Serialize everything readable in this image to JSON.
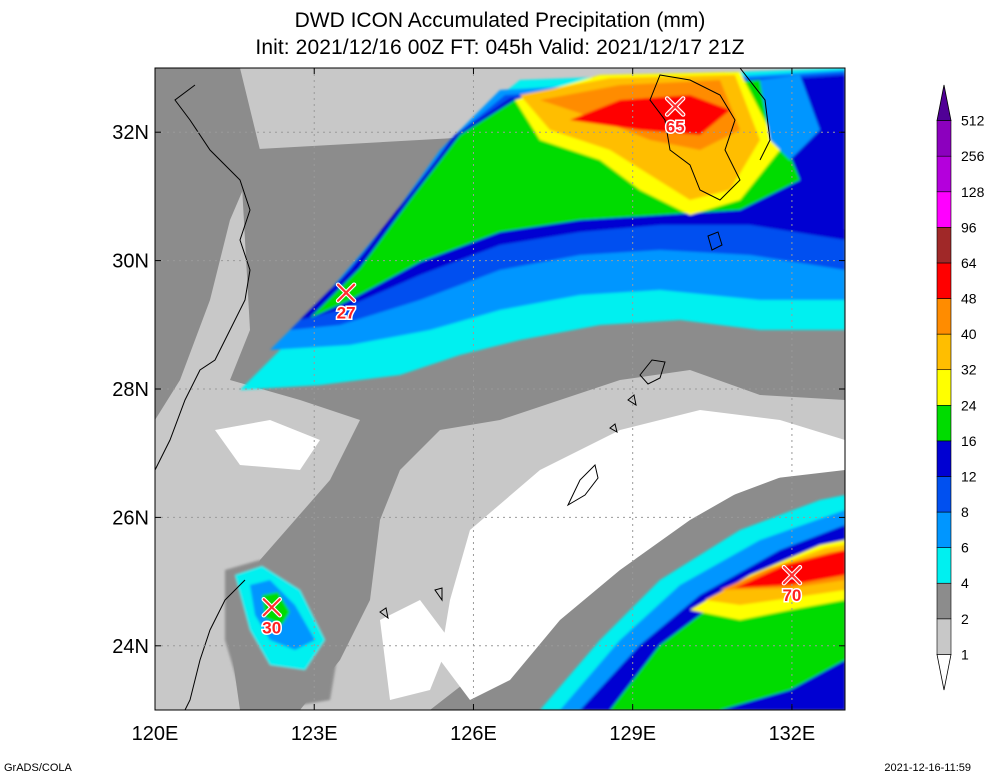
{
  "title": "DWD ICON Accumulated Precipitation (mm)",
  "subtitle": "Init: 2021/12/16 00Z  FT: 045h  Valid: 2021/12/17 21Z",
  "footer_left": "GrADS/COLA",
  "footer_right": "2021-12-16-11:59",
  "map": {
    "lon_range": [
      120,
      133
    ],
    "lat_range": [
      23,
      33
    ],
    "lon_ticks": [
      {
        "value": 120,
        "label": "120E"
      },
      {
        "value": 123,
        "label": "123E"
      },
      {
        "value": 126,
        "label": "126E"
      },
      {
        "value": 129,
        "label": "129E"
      },
      {
        "value": 132,
        "label": "132E"
      }
    ],
    "lat_ticks": [
      {
        "value": 24,
        "label": "24N"
      },
      {
        "value": 26,
        "label": "26N"
      },
      {
        "value": 28,
        "label": "28N"
      },
      {
        "value": 30,
        "label": "30N"
      },
      {
        "value": 32,
        "label": "32N"
      }
    ],
    "grid": true
  },
  "maxima": [
    {
      "lon": 123.6,
      "lat": 29.5,
      "label": "27"
    },
    {
      "lon": 122.2,
      "lat": 24.6,
      "label": "30"
    },
    {
      "lon": 129.8,
      "lat": 32.4,
      "label": "65"
    },
    {
      "lon": 132.0,
      "lat": 25.1,
      "label": "70"
    }
  ],
  "legend": {
    "levels": [
      "1",
      "2",
      "4",
      "6",
      "8",
      "12",
      "16",
      "24",
      "32",
      "40",
      "48",
      "64",
      "96",
      "128",
      "256",
      "512"
    ],
    "colors": [
      "#ffffff",
      "#c8c8c8",
      "#8c8c8c",
      "#00f0f0",
      "#0096ff",
      "#0050f0",
      "#0000d2",
      "#00dc00",
      "#ffff00",
      "#ffbe00",
      "#ff8c00",
      "#ff0000",
      "#a02828",
      "#ff00ff",
      "#b400dc",
      "#8c00be",
      "#500096"
    ]
  }
}
